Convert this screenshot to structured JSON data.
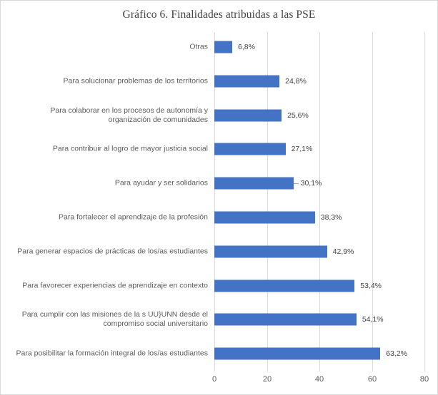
{
  "chart_data": {
    "type": "bar",
    "orientation": "horizontal",
    "title": "Gráfico  6. Finalidades  atribuidas  a las  PSE",
    "xlabel": "",
    "ylabel": "",
    "xlim": [
      0,
      80
    ],
    "xticks": [
      "0",
      "20",
      "40",
      "60",
      "80"
    ],
    "grid": true,
    "legend": null,
    "bar_color": "#4472c4",
    "categories": [
      "Otras",
      "Para solucionar problemas de los territorios",
      "Para colaborar en los procesos de autonomía y\norganización de comunidades",
      "Para contribuir al logro de mayor justicia social",
      "Para ayudar y ser solidarios",
      "Para fortalecer el aprendizaje de la profesión",
      "Para generar espacios de prácticas de los/as estudiantes",
      "Para favorecer experiencias de aprendizaje en contexto",
      "Para cumplir con las misiones de la s UU}UNN desde el\ncompromiso social universitario",
      "Para posibilitar la formación integral de los/as estudiantes"
    ],
    "values": [
      6.8,
      24.8,
      25.6,
      27.1,
      30.1,
      38.3,
      42.9,
      53.4,
      54.1,
      63.2
    ],
    "value_labels": [
      "6,8%",
      "24,8%",
      "25,6%",
      "27,1%",
      "30,1%",
      "38,3%",
      "42,9%",
      "53,4%",
      "54,1%",
      "63,2%"
    ]
  }
}
